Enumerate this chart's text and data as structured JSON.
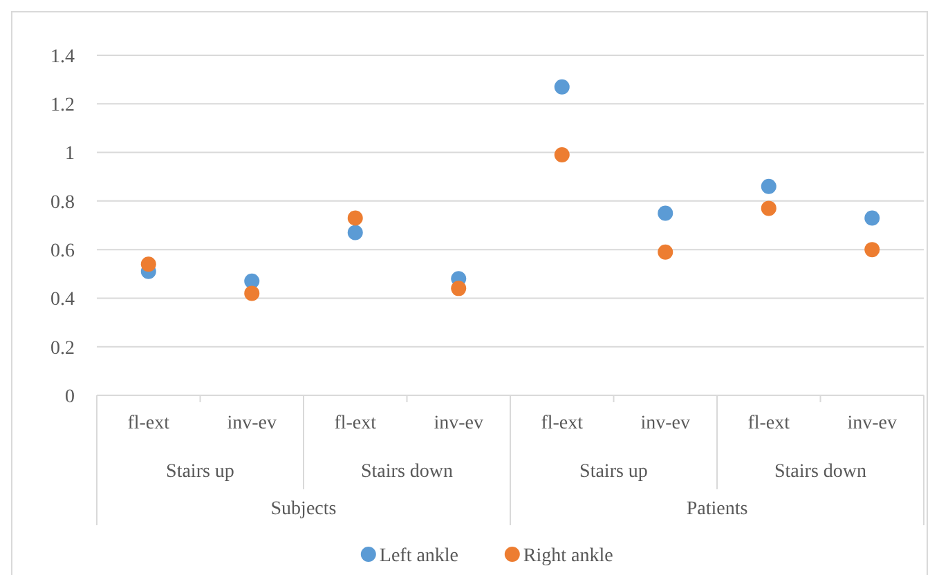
{
  "chart_data": {
    "type": "scatter",
    "categories": [
      "fl-ext",
      "inv-ev",
      "fl-ext",
      "inv-ev",
      "fl-ext",
      "inv-ev",
      "fl-ext",
      "inv-ev"
    ],
    "series": [
      {
        "name": "Left ankle",
        "color": "#5b9bd5",
        "values": [
          0.51,
          0.47,
          0.67,
          0.48,
          1.27,
          0.75,
          0.86,
          0.73
        ]
      },
      {
        "name": "Right ankle",
        "color": "#ed7d31",
        "values": [
          0.54,
          0.42,
          0.73,
          0.44,
          0.99,
          0.59,
          0.77,
          0.6
        ]
      }
    ],
    "ylim": [
      0,
      1.4
    ],
    "yticks": [
      0,
      0.2,
      0.4,
      0.6,
      0.8,
      {
        "value": 1,
        "label": "1"
      },
      1.2,
      1.4
    ],
    "annotations": [
      "Stairs up",
      "Stairs down",
      "Stairs up",
      "Stairs down",
      "Subjects",
      "Patients"
    ],
    "grid": "y",
    "legend": "bottom",
    "marker": "circle"
  }
}
